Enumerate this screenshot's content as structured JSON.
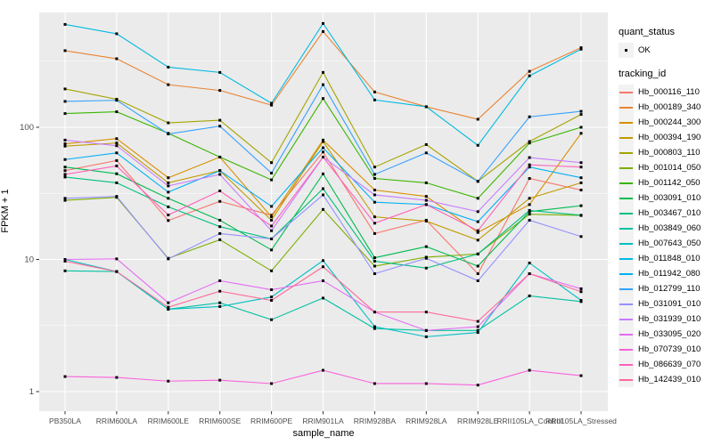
{
  "chart_data": {
    "type": "line",
    "title": "",
    "xlabel": "sample_name",
    "ylabel": "FPKM + 1",
    "yscale": "log10",
    "ylim": [
      1,
      740
    ],
    "yticks": [
      1,
      10,
      100
    ],
    "yminor": [
      3.162,
      31.62,
      316.2
    ],
    "grid": true,
    "panel_bg": "#EBEBEB",
    "grid_color": "#FFFFFF",
    "tick_label_color": "#4D4D4D",
    "point_color": "#000000",
    "legend_position": "right",
    "categories": [
      "PB350LA",
      "RRIM600LA",
      "RRIM600LE",
      "RRIM600SE",
      "RRIM600PE",
      "RRIM901LA",
      "RRIM928BA",
      "RRIM928LA",
      "RRIM928LE",
      "RRII105LA_Control",
      "RRII105LA_Stressed"
    ],
    "series": [
      {
        "name": "Hb_000116_110",
        "color": "#F8766D",
        "values": [
          47,
          56,
          19.7,
          27.5,
          21.6,
          65,
          15.7,
          19.8,
          7.8,
          41,
          33.5
        ]
      },
      {
        "name": "Hb_000189_340",
        "color": "#EA8331",
        "values": [
          380,
          330,
          210,
          190,
          147,
          530,
          185,
          143,
          115,
          265,
          400
        ]
      },
      {
        "name": "Hb_000244_300",
        "color": "#D89000",
        "values": [
          75,
          82,
          41.5,
          59.5,
          21,
          80,
          33.5,
          30,
          16,
          26,
          90
        ]
      },
      {
        "name": "Hb_000394_190",
        "color": "#C09B00",
        "values": [
          72,
          76,
          38,
          47,
          19.8,
          78,
          21,
          19.5,
          14,
          29,
          38
        ]
      },
      {
        "name": "Hb_000803_110",
        "color": "#A3A500",
        "values": [
          195,
          163,
          108,
          113,
          54,
          260,
          50,
          74,
          39,
          78,
          125
        ]
      },
      {
        "name": "Hb_001014_050",
        "color": "#7CAE00",
        "values": [
          28,
          29.5,
          10.2,
          14.1,
          8.2,
          23.9,
          8.9,
          10.4,
          11,
          22,
          21.5
        ]
      },
      {
        "name": "Hb_001142_050",
        "color": "#39B600",
        "values": [
          127,
          131,
          90,
          59.5,
          40,
          165,
          41,
          38,
          29,
          76,
          100
        ]
      },
      {
        "name": "Hb_003091_010",
        "color": "#00BB4E",
        "values": [
          50,
          44.5,
          29,
          19.8,
          11.8,
          44.4,
          10.3,
          12.5,
          8.9,
          23,
          25.5
        ]
      },
      {
        "name": "Hb_003467_010",
        "color": "#00BF7D",
        "values": [
          42,
          38,
          25,
          17.7,
          14.3,
          34.3,
          9.7,
          8.6,
          11,
          23.5,
          21.6
        ]
      },
      {
        "name": "Hb_003849_060",
        "color": "#00C1A3",
        "values": [
          8.2,
          8.1,
          4.2,
          4.7,
          3.5,
          5.1,
          3.0,
          2.9,
          2.9,
          5.3,
          4.8
        ]
      },
      {
        "name": "Hb_007643_050",
        "color": "#00BFC4",
        "values": [
          10,
          8.1,
          4.2,
          4.4,
          5.2,
          9.8,
          3.1,
          2.6,
          2.8,
          9.4,
          4.9
        ]
      },
      {
        "name": "Hb_011848_010",
        "color": "#00BAE0",
        "values": [
          600,
          510,
          285,
          260,
          152,
          610,
          161,
          143,
          73,
          245,
          390
        ]
      },
      {
        "name": "Hb_011942_080",
        "color": "#00B0F6",
        "values": [
          57,
          64,
          32.3,
          47,
          25.2,
          70,
          27.1,
          26,
          19.3,
          50,
          41.5
        ]
      },
      {
        "name": "Hb_012799_110",
        "color": "#35A2FF",
        "values": [
          157,
          160,
          89,
          102,
          45,
          210,
          44,
          64,
          39,
          120,
          132
        ]
      },
      {
        "name": "Hb_031091_010",
        "color": "#9590FF",
        "values": [
          29,
          30,
          10.1,
          15.7,
          14.3,
          30.8,
          7.8,
          10.2,
          6.9,
          19.8,
          14.9
        ]
      },
      {
        "name": "Hb_031939_010",
        "color": "#C77CFF",
        "values": [
          80,
          72.5,
          36,
          44,
          16.5,
          59.5,
          30.8,
          28,
          23,
          59,
          54
        ]
      },
      {
        "name": "Hb_033095_020",
        "color": "#E76BF3",
        "values": [
          10,
          10.1,
          4.7,
          6.9,
          5.9,
          6.9,
          4.0,
          2.9,
          3.1,
          7.8,
          6.0
        ]
      },
      {
        "name": "Hb_070739_010",
        "color": "#FA62DB",
        "values": [
          1.3,
          1.28,
          1.2,
          1.22,
          1.15,
          1.45,
          1.15,
          1.15,
          1.12,
          1.45,
          1.32
        ]
      },
      {
        "name": "Hb_086639_070",
        "color": "#FF62BC",
        "values": [
          44,
          51,
          21.7,
          33,
          17.9,
          59.5,
          18.8,
          26,
          16.5,
          52,
          50
        ]
      },
      {
        "name": "Hb_142439_010",
        "color": "#FF6A98",
        "values": [
          9.7,
          8.1,
          4.35,
          5.75,
          4.9,
          8.8,
          4.0,
          4.0,
          3.4,
          7.8,
          5.7
        ]
      }
    ]
  },
  "legend": {
    "quant_status_title": "quant_status",
    "quant_status_ok": "OK",
    "tracking_id_title": "tracking_id"
  }
}
